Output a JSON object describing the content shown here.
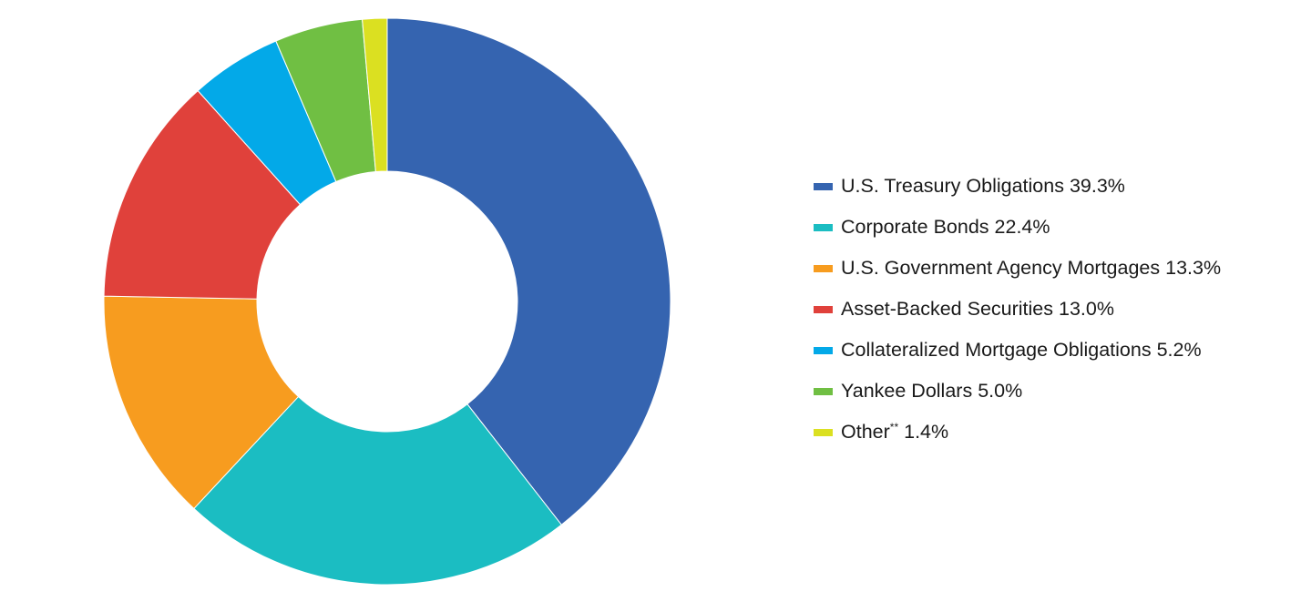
{
  "chart_data": {
    "type": "pie",
    "donut": true,
    "title": "",
    "legend_position": "right",
    "slices": [
      {
        "label": "U.S. Treasury Obligations",
        "marker": "",
        "value": 39.3,
        "value_label": "39.3%",
        "color": "#3564b0"
      },
      {
        "label": "Corporate Bonds",
        "marker": "",
        "value": 22.4,
        "value_label": "22.4%",
        "color": "#1bbdc2"
      },
      {
        "label": "U.S. Government Agency Mortgages",
        "marker": "",
        "value": 13.3,
        "value_label": "13.3%",
        "color": "#f79c1f"
      },
      {
        "label": "Asset-Backed Securities",
        "marker": "",
        "value": 13.0,
        "value_label": "13.0%",
        "color": "#e0413b"
      },
      {
        "label": "Collateralized Mortgage Obligations",
        "marker": "",
        "value": 5.2,
        "value_label": "5.2%",
        "color": "#03a9e8"
      },
      {
        "label": "Yankee Dollars",
        "marker": "",
        "value": 5.0,
        "value_label": "5.0%",
        "color": "#70bf43"
      },
      {
        "label": "Other",
        "marker": "**",
        "value": 1.4,
        "value_label": "1.4%",
        "color": "#dbe021"
      }
    ]
  }
}
